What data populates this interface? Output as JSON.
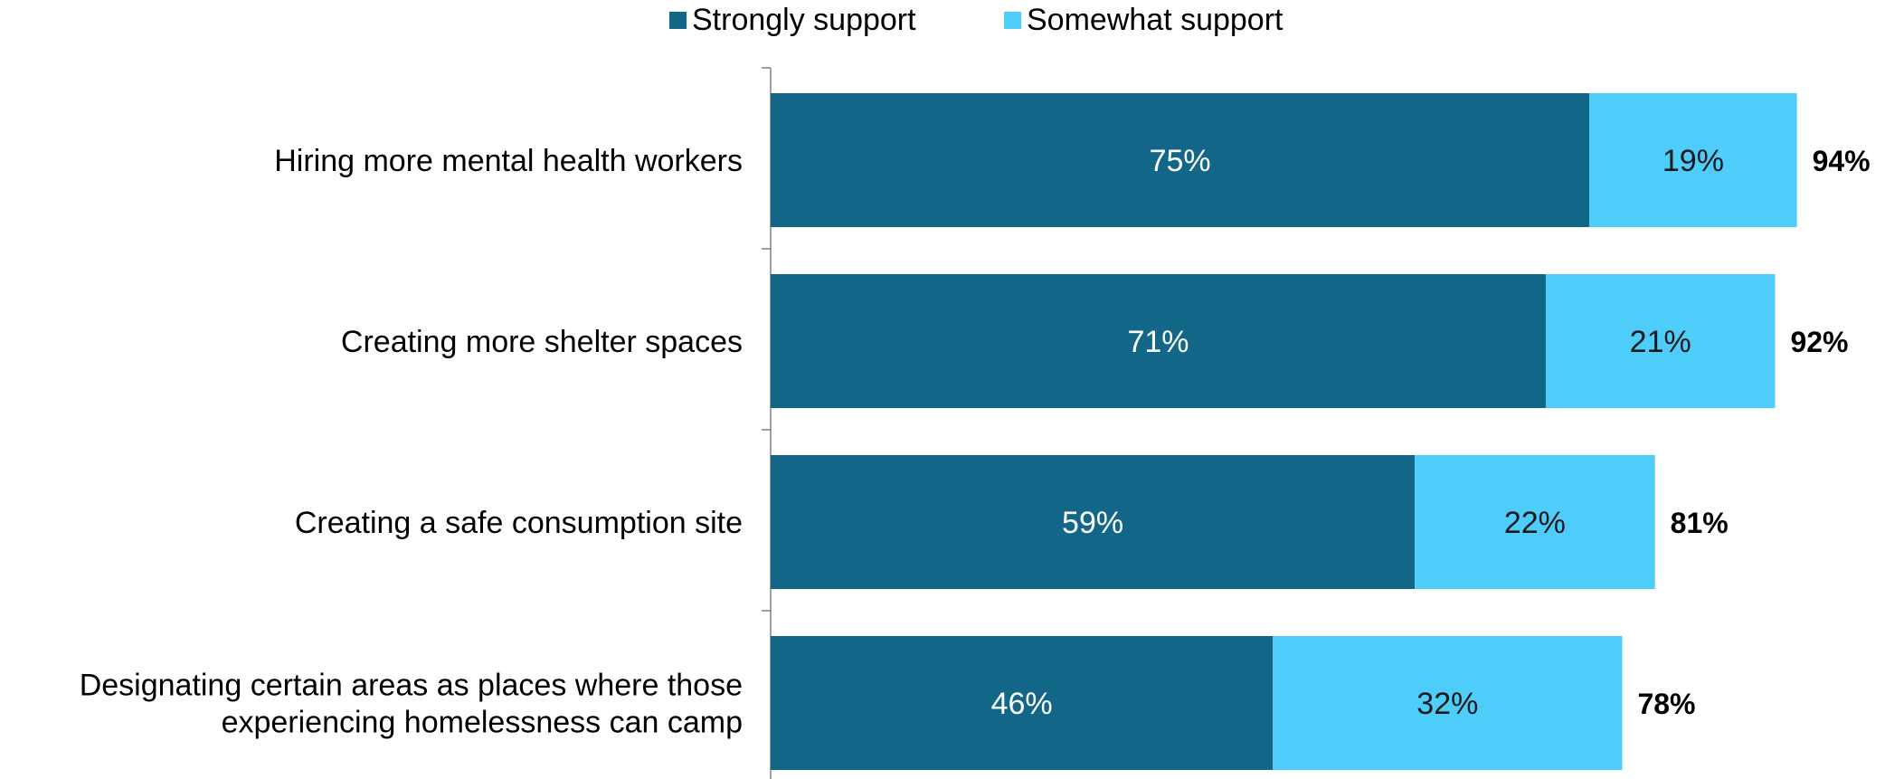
{
  "chart_data": {
    "type": "bar",
    "orientation": "horizontal",
    "stacked": true,
    "categories": [
      "Hiring more mental health workers",
      "Creating more shelter spaces",
      "Creating a safe consumption site",
      "Designating certain areas as places where those experiencing homelessness can camp"
    ],
    "category_lines": [
      [
        "Hiring more mental health workers"
      ],
      [
        "Creating more shelter spaces"
      ],
      [
        "Creating a safe consumption site"
      ],
      [
        "Designating certain areas as places where those",
        "experiencing homelessness can camp"
      ]
    ],
    "series": [
      {
        "name": "Strongly support",
        "values": [
          75,
          71,
          59,
          46
        ],
        "labels": [
          "75%",
          "71%",
          "59%",
          "46%"
        ],
        "color": "#126688"
      },
      {
        "name": "Somewhat support",
        "values": [
          19,
          21,
          22,
          32
        ],
        "labels": [
          "19%",
          "21%",
          "22%",
          "32%"
        ],
        "color": "#4ecdfb"
      }
    ],
    "totals": [
      94,
      92,
      81,
      78
    ],
    "total_labels": [
      "94%",
      "92%",
      "81%",
      "78%"
    ],
    "xlim": [
      0,
      100
    ],
    "grid": false,
    "legend_position": "top-center",
    "title": "",
    "xlabel": "",
    "ylabel": ""
  }
}
